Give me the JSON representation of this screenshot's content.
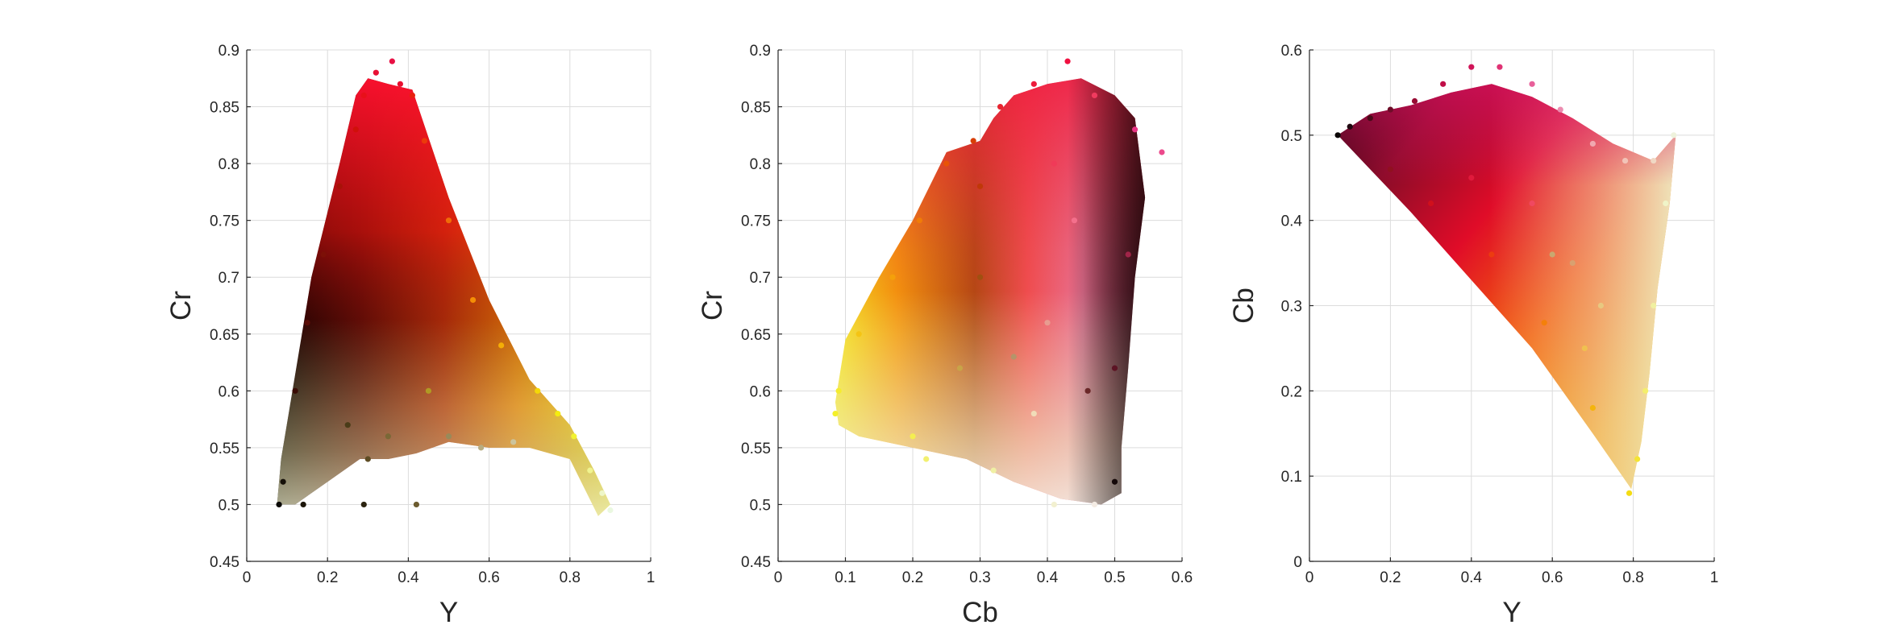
{
  "chart_data": [
    {
      "type": "scatter",
      "xlabel": "Y",
      "ylabel": "Cr",
      "xlim": [
        0,
        1
      ],
      "ylim": [
        0.45,
        0.9
      ],
      "grid": true,
      "xticks": [
        0,
        0.2,
        0.4,
        0.6,
        0.8,
        1
      ],
      "xtick_labels": [
        "0",
        "0.2",
        "0.4",
        "0.6",
        "0.8",
        "1"
      ],
      "yticks": [
        0.45,
        0.5,
        0.55,
        0.6,
        0.65,
        0.7,
        0.75,
        0.8,
        0.85,
        0.9
      ],
      "ytick_labels": [
        "0.45",
        "0.5",
        "0.55",
        "0.6",
        "0.65",
        "0.7",
        "0.75",
        "0.8",
        "0.85",
        "0.9"
      ],
      "points": [
        {
          "x": 0.08,
          "y": 0.5,
          "color": "#0a0805"
        },
        {
          "x": 0.09,
          "y": 0.52,
          "color": "#151008"
        },
        {
          "x": 0.12,
          "y": 0.6,
          "color": "#3a0c05"
        },
        {
          "x": 0.15,
          "y": 0.66,
          "color": "#5a0d06"
        },
        {
          "x": 0.19,
          "y": 0.72,
          "color": "#7c1007"
        },
        {
          "x": 0.23,
          "y": 0.78,
          "color": "#a81208"
        },
        {
          "x": 0.27,
          "y": 0.83,
          "color": "#d0100a"
        },
        {
          "x": 0.29,
          "y": 0.86,
          "color": "#e8101a"
        },
        {
          "x": 0.32,
          "y": 0.88,
          "color": "#e81034"
        },
        {
          "x": 0.36,
          "y": 0.89,
          "color": "#e81044"
        },
        {
          "x": 0.38,
          "y": 0.87,
          "color": "#e81030"
        },
        {
          "x": 0.41,
          "y": 0.86,
          "color": "#e82010"
        },
        {
          "x": 0.44,
          "y": 0.82,
          "color": "#ec3a0a"
        },
        {
          "x": 0.5,
          "y": 0.75,
          "color": "#f06c08"
        },
        {
          "x": 0.56,
          "y": 0.68,
          "color": "#f48e06"
        },
        {
          "x": 0.63,
          "y": 0.64,
          "color": "#f4ae06"
        },
        {
          "x": 0.72,
          "y": 0.6,
          "color": "#f4d808"
        },
        {
          "x": 0.77,
          "y": 0.58,
          "color": "#f4ec10"
        },
        {
          "x": 0.81,
          "y": 0.56,
          "color": "#f2f230"
        },
        {
          "x": 0.85,
          "y": 0.53,
          "color": "#f0f490"
        },
        {
          "x": 0.88,
          "y": 0.51,
          "color": "#eef6c8"
        },
        {
          "x": 0.9,
          "y": 0.495,
          "color": "#eaf8e0"
        },
        {
          "x": 0.25,
          "y": 0.57,
          "color": "#4a3c18"
        },
        {
          "x": 0.3,
          "y": 0.54,
          "color": "#5e4c24"
        },
        {
          "x": 0.35,
          "y": 0.56,
          "color": "#7a6836"
        },
        {
          "x": 0.42,
          "y": 0.5,
          "color": "#6c5c30"
        },
        {
          "x": 0.5,
          "y": 0.56,
          "color": "#988a5a"
        },
        {
          "x": 0.58,
          "y": 0.55,
          "color": "#b8ac80"
        },
        {
          "x": 0.66,
          "y": 0.555,
          "color": "#ccc49c"
        },
        {
          "x": 0.29,
          "y": 0.5,
          "color": "#2c2410"
        },
        {
          "x": 0.14,
          "y": 0.5,
          "color": "#1c160a"
        },
        {
          "x": 0.45,
          "y": 0.6,
          "color": "#b09a24"
        }
      ]
    },
    {
      "type": "scatter",
      "xlabel": "Cb",
      "ylabel": "Cr",
      "xlim": [
        0,
        0.6
      ],
      "ylim": [
        0.45,
        0.9
      ],
      "grid": true,
      "xticks": [
        0,
        0.1,
        0.2,
        0.3,
        0.4,
        0.5,
        0.6
      ],
      "xtick_labels": [
        "0",
        "0.1",
        "0.2",
        "0.3",
        "0.4",
        "0.5",
        "0.6"
      ],
      "yticks": [
        0.45,
        0.5,
        0.55,
        0.6,
        0.65,
        0.7,
        0.75,
        0.8,
        0.85,
        0.9
      ],
      "ytick_labels": [
        "0.45",
        "0.5",
        "0.55",
        "0.6",
        "0.65",
        "0.7",
        "0.75",
        "0.8",
        "0.85",
        "0.9"
      ],
      "points": [
        {
          "x": 0.085,
          "y": 0.58,
          "color": "#f4f028"
        },
        {
          "x": 0.09,
          "y": 0.6,
          "color": "#f4ec30"
        },
        {
          "x": 0.12,
          "y": 0.65,
          "color": "#f4c414"
        },
        {
          "x": 0.17,
          "y": 0.7,
          "color": "#f4a00a"
        },
        {
          "x": 0.21,
          "y": 0.75,
          "color": "#f07c08"
        },
        {
          "x": 0.25,
          "y": 0.8,
          "color": "#e85406"
        },
        {
          "x": 0.29,
          "y": 0.82,
          "color": "#d83e06"
        },
        {
          "x": 0.33,
          "y": 0.85,
          "color": "#e82430"
        },
        {
          "x": 0.38,
          "y": 0.87,
          "color": "#ec1c3c"
        },
        {
          "x": 0.43,
          "y": 0.89,
          "color": "#f01040"
        },
        {
          "x": 0.47,
          "y": 0.86,
          "color": "#f03a5e"
        },
        {
          "x": 0.53,
          "y": 0.83,
          "color": "#e83484"
        },
        {
          "x": 0.57,
          "y": 0.81,
          "color": "#ec4a8c"
        },
        {
          "x": 0.52,
          "y": 0.72,
          "color": "#a02448"
        },
        {
          "x": 0.5,
          "y": 0.62,
          "color": "#5c1424"
        },
        {
          "x": 0.5,
          "y": 0.52,
          "color": "#140808"
        },
        {
          "x": 0.47,
          "y": 0.5,
          "color": "#f4ece4"
        },
        {
          "x": 0.41,
          "y": 0.5,
          "color": "#f2f0d0"
        },
        {
          "x": 0.32,
          "y": 0.53,
          "color": "#f0f0a4"
        },
        {
          "x": 0.22,
          "y": 0.54,
          "color": "#f2f070"
        },
        {
          "x": 0.2,
          "y": 0.56,
          "color": "#f4ee50"
        },
        {
          "x": 0.3,
          "y": 0.7,
          "color": "#a05010"
        },
        {
          "x": 0.35,
          "y": 0.63,
          "color": "#b4946a"
        },
        {
          "x": 0.4,
          "y": 0.66,
          "color": "#e89c90"
        },
        {
          "x": 0.44,
          "y": 0.75,
          "color": "#f4708c"
        },
        {
          "x": 0.38,
          "y": 0.58,
          "color": "#f0dcb8"
        },
        {
          "x": 0.27,
          "y": 0.62,
          "color": "#c8a448"
        },
        {
          "x": 0.46,
          "y": 0.6,
          "color": "#6a2828"
        },
        {
          "x": 0.3,
          "y": 0.78,
          "color": "#c03808"
        },
        {
          "x": 0.41,
          "y": 0.8,
          "color": "#f03a58"
        }
      ]
    },
    {
      "type": "scatter",
      "xlabel": "Y",
      "ylabel": "Cb",
      "xlim": [
        0,
        1
      ],
      "ylim": [
        0,
        0.6
      ],
      "grid": true,
      "xticks": [
        0,
        0.2,
        0.4,
        0.6,
        0.8,
        1
      ],
      "xtick_labels": [
        "0",
        "0.2",
        "0.4",
        "0.6",
        "0.8",
        "1"
      ],
      "yticks": [
        0,
        0.1,
        0.2,
        0.3,
        0.4,
        0.5,
        0.6
      ],
      "ytick_labels": [
        "0",
        "0.1",
        "0.2",
        "0.3",
        "0.4",
        "0.5",
        "0.6"
      ],
      "points": [
        {
          "x": 0.07,
          "y": 0.5,
          "color": "#0a0606"
        },
        {
          "x": 0.1,
          "y": 0.51,
          "color": "#200810"
        },
        {
          "x": 0.15,
          "y": 0.52,
          "color": "#480a18"
        },
        {
          "x": 0.2,
          "y": 0.53,
          "color": "#6e0c28"
        },
        {
          "x": 0.26,
          "y": 0.54,
          "color": "#980c34"
        },
        {
          "x": 0.33,
          "y": 0.56,
          "color": "#c00e48"
        },
        {
          "x": 0.4,
          "y": 0.58,
          "color": "#d01458"
        },
        {
          "x": 0.47,
          "y": 0.58,
          "color": "#e03274"
        },
        {
          "x": 0.55,
          "y": 0.56,
          "color": "#e8609a"
        },
        {
          "x": 0.62,
          "y": 0.53,
          "color": "#ec8cb0"
        },
        {
          "x": 0.7,
          "y": 0.49,
          "color": "#f0a8b0"
        },
        {
          "x": 0.78,
          "y": 0.47,
          "color": "#f2c4b8"
        },
        {
          "x": 0.85,
          "y": 0.47,
          "color": "#f0d8c4"
        },
        {
          "x": 0.9,
          "y": 0.5,
          "color": "#eef2dc"
        },
        {
          "x": 0.88,
          "y": 0.42,
          "color": "#f0f4c8"
        },
        {
          "x": 0.85,
          "y": 0.3,
          "color": "#f0f0a0"
        },
        {
          "x": 0.83,
          "y": 0.2,
          "color": "#f4ee6c"
        },
        {
          "x": 0.81,
          "y": 0.12,
          "color": "#f4e434"
        },
        {
          "x": 0.79,
          "y": 0.08,
          "color": "#f4dc14"
        },
        {
          "x": 0.7,
          "y": 0.18,
          "color": "#f4b40c"
        },
        {
          "x": 0.58,
          "y": 0.28,
          "color": "#f4800a"
        },
        {
          "x": 0.45,
          "y": 0.36,
          "color": "#ec3c10"
        },
        {
          "x": 0.3,
          "y": 0.42,
          "color": "#d0101c"
        },
        {
          "x": 0.2,
          "y": 0.46,
          "color": "#901020"
        },
        {
          "x": 0.4,
          "y": 0.45,
          "color": "#e01a3c"
        },
        {
          "x": 0.55,
          "y": 0.42,
          "color": "#f04860"
        },
        {
          "x": 0.65,
          "y": 0.35,
          "color": "#d8a070"
        },
        {
          "x": 0.72,
          "y": 0.3,
          "color": "#e8c880"
        },
        {
          "x": 0.68,
          "y": 0.25,
          "color": "#f0c050"
        },
        {
          "x": 0.6,
          "y": 0.36,
          "color": "#c8a870"
        }
      ]
    }
  ]
}
